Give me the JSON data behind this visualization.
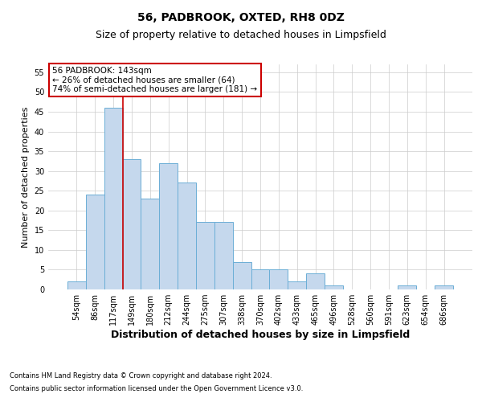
{
  "title1": "56, PADBROOK, OXTED, RH8 0DZ",
  "title2": "Size of property relative to detached houses in Limpsfield",
  "xlabel": "Distribution of detached houses by size in Limpsfield",
  "ylabel": "Number of detached properties",
  "categories": [
    "54sqm",
    "86sqm",
    "117sqm",
    "149sqm",
    "180sqm",
    "212sqm",
    "244sqm",
    "275sqm",
    "307sqm",
    "338sqm",
    "370sqm",
    "402sqm",
    "433sqm",
    "465sqm",
    "496sqm",
    "528sqm",
    "560sqm",
    "591sqm",
    "623sqm",
    "654sqm",
    "686sqm"
  ],
  "values": [
    2,
    24,
    46,
    33,
    23,
    32,
    27,
    17,
    17,
    7,
    5,
    5,
    2,
    4,
    1,
    0,
    0,
    0,
    1,
    0,
    1
  ],
  "bar_color": "#c5d8ed",
  "bar_edge_color": "#6baed6",
  "bar_edge_width": 0.7,
  "vline_x_index": 2.5,
  "vline_color": "#cc0000",
  "ylim": [
    0,
    57
  ],
  "yticks": [
    0,
    5,
    10,
    15,
    20,
    25,
    30,
    35,
    40,
    45,
    50,
    55
  ],
  "annotation_text": "56 PADBROOK: 143sqm\n← 26% of detached houses are smaller (64)\n74% of semi-detached houses are larger (181) →",
  "annotation_box_color": "#ffffff",
  "annotation_box_edge": "#cc0000",
  "footnote1": "Contains HM Land Registry data © Crown copyright and database right 2024.",
  "footnote2": "Contains public sector information licensed under the Open Government Licence v3.0.",
  "bg_color": "#ffffff",
  "grid_color": "#cccccc",
  "title1_fontsize": 10,
  "title2_fontsize": 9,
  "xlabel_fontsize": 9,
  "ylabel_fontsize": 8,
  "tick_fontsize": 7,
  "annotation_fontsize": 7.5,
  "footnote_fontsize": 6
}
